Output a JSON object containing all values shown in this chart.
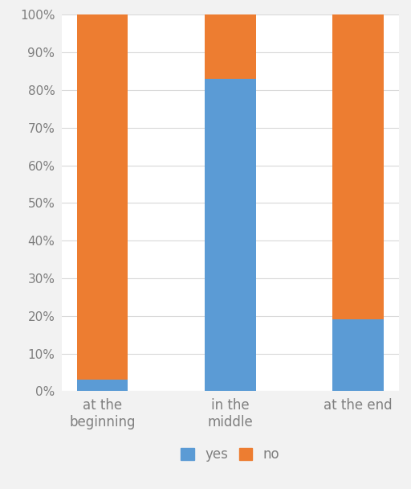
{
  "categories": [
    "at the\nbeginning",
    "in the\nmiddle",
    "at the end"
  ],
  "yes_values": [
    3,
    83,
    19
  ],
  "no_values": [
    97,
    17,
    81
  ],
  "yes_color": "#5B9BD5",
  "no_color": "#ED7D31",
  "ylim": [
    0,
    100
  ],
  "yticks": [
    0,
    10,
    20,
    30,
    40,
    50,
    60,
    70,
    80,
    90,
    100
  ],
  "yticklabels": [
    "0%",
    "10%",
    "20%",
    "30%",
    "40%",
    "50%",
    "60%",
    "70%",
    "80%",
    "90%",
    "100%"
  ],
  "legend_labels": [
    "yes",
    "no"
  ],
  "background_color": "#ffffff",
  "figure_bg_color": "#f2f2f2",
  "grid_color": "#d9d9d9",
  "bar_width": 0.4,
  "tick_label_color": "#7f7f7f",
  "tick_fontsize": 11
}
